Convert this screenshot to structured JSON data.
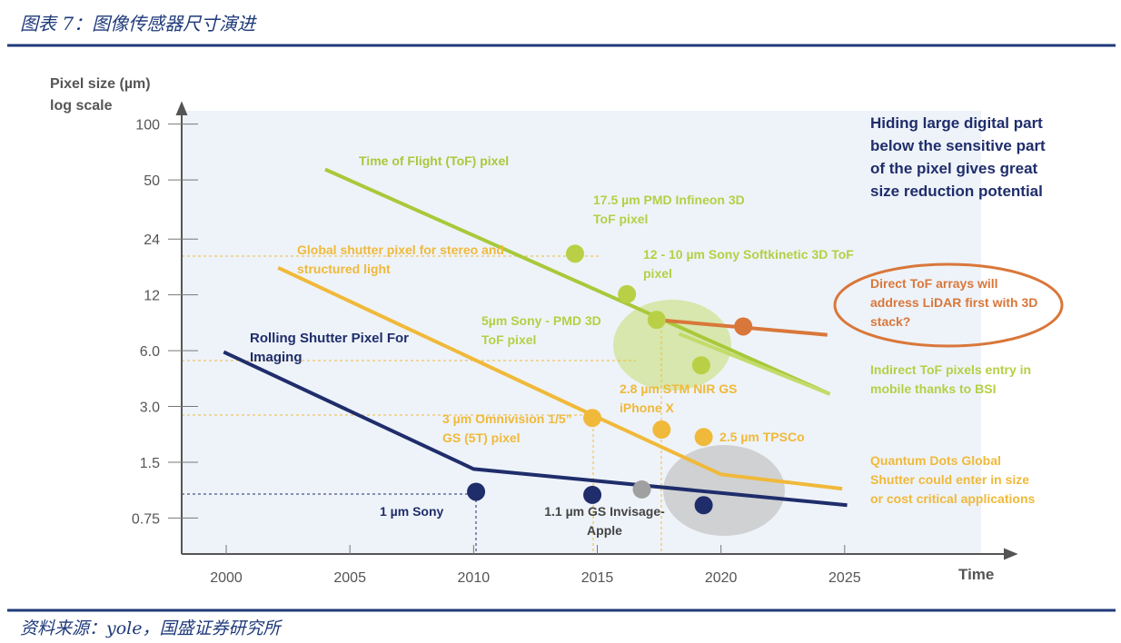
{
  "header": {
    "title": "图表 7：图像传感器尺寸演进"
  },
  "footer": {
    "source": "资料来源：yole，国盛证券研究所"
  },
  "chart_data": {
    "type": "line",
    "ylabel": "Pixel size (µm)",
    "ylabel_note": "log scale",
    "xlabel": "Time",
    "log_y": true,
    "xlim": [
      1998.2,
      2031.8
    ],
    "xticks": [
      2000,
      2005,
      2010,
      2015,
      2020,
      2025
    ],
    "ylim": [
      0.48,
      118
    ],
    "yticks": [
      100,
      50,
      24,
      12,
      {
        "value": 6,
        "label": "6.0"
      },
      {
        "value": 3,
        "label": "3.0"
      },
      1.5,
      0.75
    ],
    "series": [
      {
        "name": "Time of Flight (ToF) pixel",
        "color": "#a8c93a",
        "x": [
          2004.0,
          2024.4
        ],
        "values": [
          57,
          3.5
        ]
      },
      {
        "name": "Global shutter pixel for stereo and structured light",
        "color": "#f0b93a",
        "x": [
          2002.1,
          2014.8,
          2020.0,
          2024.9
        ],
        "values": [
          16.8,
          2.7,
          1.29,
          1.08
        ]
      },
      {
        "name": "Rolling Shutter Pixel For Imaging",
        "color": "#1f2d6b",
        "x": [
          1999.9,
          2010.0,
          2025.1
        ],
        "values": [
          5.9,
          1.38,
          0.88
        ]
      },
      {
        "name": "Direct ToF arrays will address LiDAR first with 3D stack?",
        "color": "#d9773a",
        "x": [
          2017.4,
          2024.3
        ],
        "values": [
          8.8,
          7.3
        ]
      },
      {
        "name": "Indirect ToF pixels entry in mobile thanks to BSI",
        "color": "#c2dc6a",
        "x": [
          2018.3,
          2024.4
        ],
        "values": [
          7.4,
          3.5
        ]
      }
    ],
    "points": [
      {
        "label": "17.5 µm PMD Infineon 3D ToF pixel",
        "x": 2014.1,
        "y": 20,
        "color": "#b9d046"
      },
      {
        "label": "12 - 10 µm Sony Softkinetic 3D ToF pixel",
        "x": 2016.2,
        "y": 12.1,
        "color": "#b9d046"
      },
      {
        "label": "5µm Sony - PMD 3D ToF pixel",
        "x": 2017.4,
        "y": 8.8,
        "color": "#b9d046"
      },
      {
        "label": "2.8 µm STM NIR GS iPhone X",
        "x": 2017.6,
        "y": 2.25,
        "color": "#f0b93a"
      },
      {
        "label": "2.5 µm TPSCo",
        "x": 2019.3,
        "y": 2.05,
        "color": "#f0b93a"
      },
      {
        "label": "3 µm Omnivision 1/5” GS (5T) pixel",
        "x": 2014.8,
        "y": 2.6,
        "color": "#f0b93a"
      },
      {
        "label": "1 µm Sony",
        "x": 2010.1,
        "y": 1.04,
        "color": "#1f2d6b"
      },
      {
        "label": "1.1 µm GS Invisage-Apple",
        "x": 2014.8,
        "y": 1.0,
        "color": "#1f2d6b"
      },
      {
        "label": null,
        "x": 2016.8,
        "y": 1.07,
        "color": "#a0a0a0"
      },
      {
        "label": null,
        "x": 2019.3,
        "y": 0.88,
        "color": "#1f2d6b"
      },
      {
        "label": null,
        "x": 2019.2,
        "y": 5.0,
        "color": "#b9d046"
      },
      {
        "label": null,
        "x": 2020.9,
        "y": 8.1,
        "color": "#d9773a"
      }
    ],
    "annotations": [
      "Hiding large digital part below the sensitive part of the pixel gives great size reduction potential",
      "Quantum Dots Global Shutter could enter in size or cost critical applications"
    ]
  }
}
